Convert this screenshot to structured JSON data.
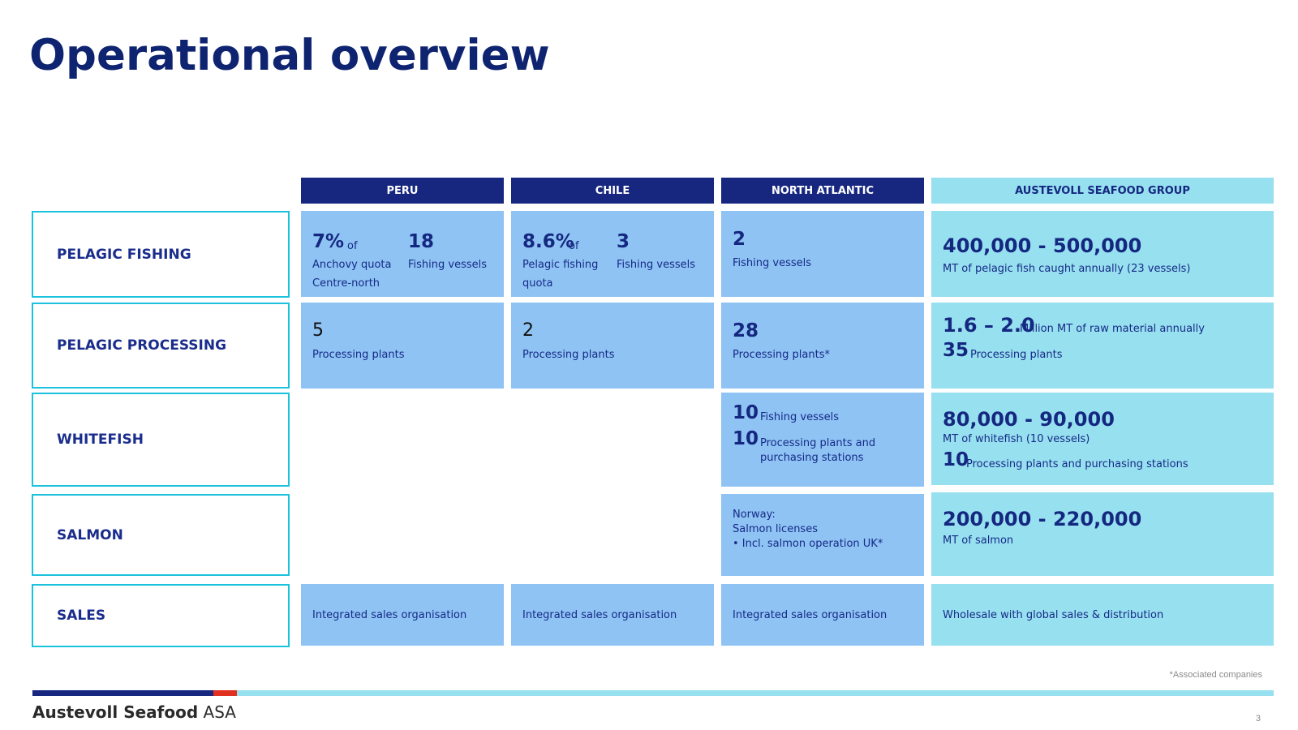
{
  "title": "Operational overview",
  "columns": [
    "PERU",
    "CHILE",
    "NORTH ATLANTIC",
    "AUSTEVOLL SEAFOOD GROUP"
  ],
  "rows": [
    "PELAGIC FISHING",
    "PELAGIC PROCESSING",
    "WHITEFISH",
    "SALMON",
    "SALES"
  ],
  "pelagic_fishing": {
    "peru": {
      "v1": "7%",
      "of": "of",
      "d1a": "Anchovy quota",
      "d1b": "Centre-north",
      "v2": "18",
      "d2": "Fishing vessels"
    },
    "chile": {
      "v1": "8.6%",
      "of": "of",
      "d1a": "Pelagic fishing",
      "d1b": "quota",
      "v2": "3",
      "d2": "Fishing vessels"
    },
    "north_atlantic": {
      "v": "2",
      "d": "Fishing vessels"
    },
    "group": {
      "v": "400,000 - 500,000",
      "d": "MT of pelagic fish caught annually (23 vessels)"
    }
  },
  "pelagic_processing": {
    "peru": {
      "v": "5",
      "d": "Processing plants"
    },
    "chile": {
      "v": "2",
      "d": "Processing plants"
    },
    "north_atlantic": {
      "v": "28",
      "d": "Processing plants*"
    },
    "group": {
      "v1": "1.6 – 2.0",
      "d1": "Million MT of raw material annually",
      "v2": "35",
      "d2": "Processing plants"
    }
  },
  "whitefish": {
    "north_atlantic": {
      "v1": "10",
      "d1": "Fishing vessels",
      "v2": "10",
      "d2a": "Processing plants and",
      "d2b": "purchasing stations"
    },
    "group": {
      "v1": "80,000 - 90,000",
      "d1": "MT of whitefish  (10 vessels)",
      "v2": "10",
      "d2": "Processing plants and purchasing stations"
    }
  },
  "salmon": {
    "north_atlantic": {
      "l1": "Norway:",
      "l2": "Salmon licenses",
      "l3": "•  Incl. salmon operation UK*"
    },
    "group": {
      "v": "200,000 - 220,000",
      "d": "MT of salmon"
    }
  },
  "sales": {
    "peru": "Integrated sales organisation",
    "chile": "Integrated sales organisation",
    "north_atlantic": "Integrated sales organisation",
    "group": "Wholesale with global sales & distribution"
  },
  "footnote": "*Associated companies",
  "brand": {
    "bold": "Austevoll Seafood",
    "rest": "ASA"
  },
  "page_number": "3",
  "colors": {
    "dark_blue": "#172780",
    "mid_blue": "#8ec3f4",
    "light_cyan": "#97e0f0",
    "border_cyan": "#1bc2dc",
    "accent_red": "#e03020"
  }
}
